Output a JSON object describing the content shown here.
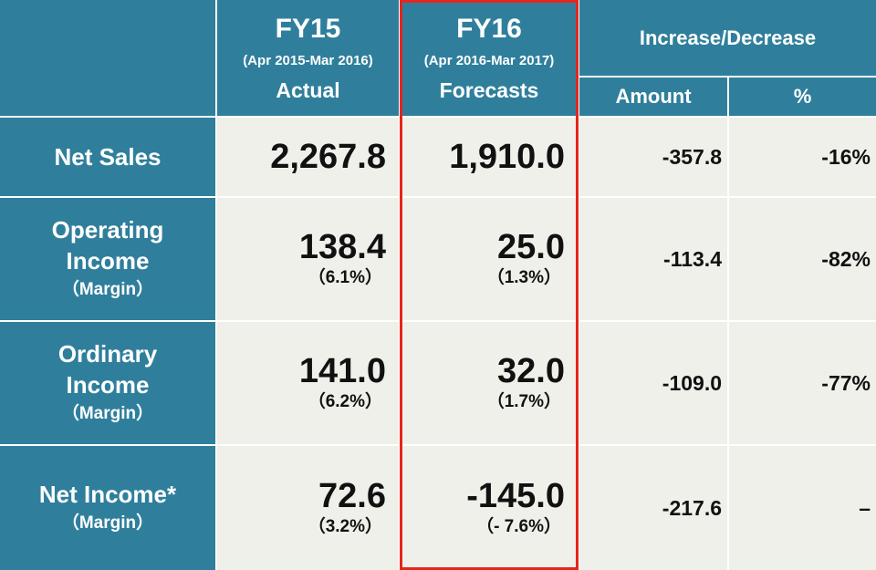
{
  "header": {
    "fy15": {
      "title": "FY15",
      "period": "(Apr 2015-Mar 2016)",
      "type": "Actual"
    },
    "fy16": {
      "title": "FY16",
      "period": "(Apr 2016-Mar 2017)",
      "type": "Forecasts"
    },
    "change": {
      "title": "Increase/Decrease",
      "amount": "Amount",
      "pct": "%"
    }
  },
  "rows": [
    {
      "label": "Net Sales",
      "sub": "",
      "fy15": "2,267.8",
      "fy15_margin": "",
      "fy16": "1,910.0",
      "fy16_margin": "",
      "amount": "-357.8",
      "pct": "-16%"
    },
    {
      "label": "Operating Income",
      "sub": "（Margin）",
      "fy15": "138.4",
      "fy15_margin": "（6.1%）",
      "fy16": "25.0",
      "fy16_margin": "（1.3%）",
      "amount": "-113.4",
      "pct": "-82%"
    },
    {
      "label": "Ordinary Income",
      "sub": "（Margin）",
      "fy15": "141.0",
      "fy15_margin": "（6.2%）",
      "fy16": "32.0",
      "fy16_margin": "（1.7%）",
      "amount": "-109.0",
      "pct": "-77%"
    },
    {
      "label": "Net Income*",
      "sub": "（Margin）",
      "fy15": "72.6",
      "fy15_margin": "（3.2%）",
      "fy16": "-145.0",
      "fy16_margin": "（- 7.6%）",
      "amount": "-217.6",
      "pct": "–"
    }
  ],
  "colors": {
    "header": "#2f7f9c",
    "cell": "#eef0e9",
    "highlight": "#e5261c"
  }
}
